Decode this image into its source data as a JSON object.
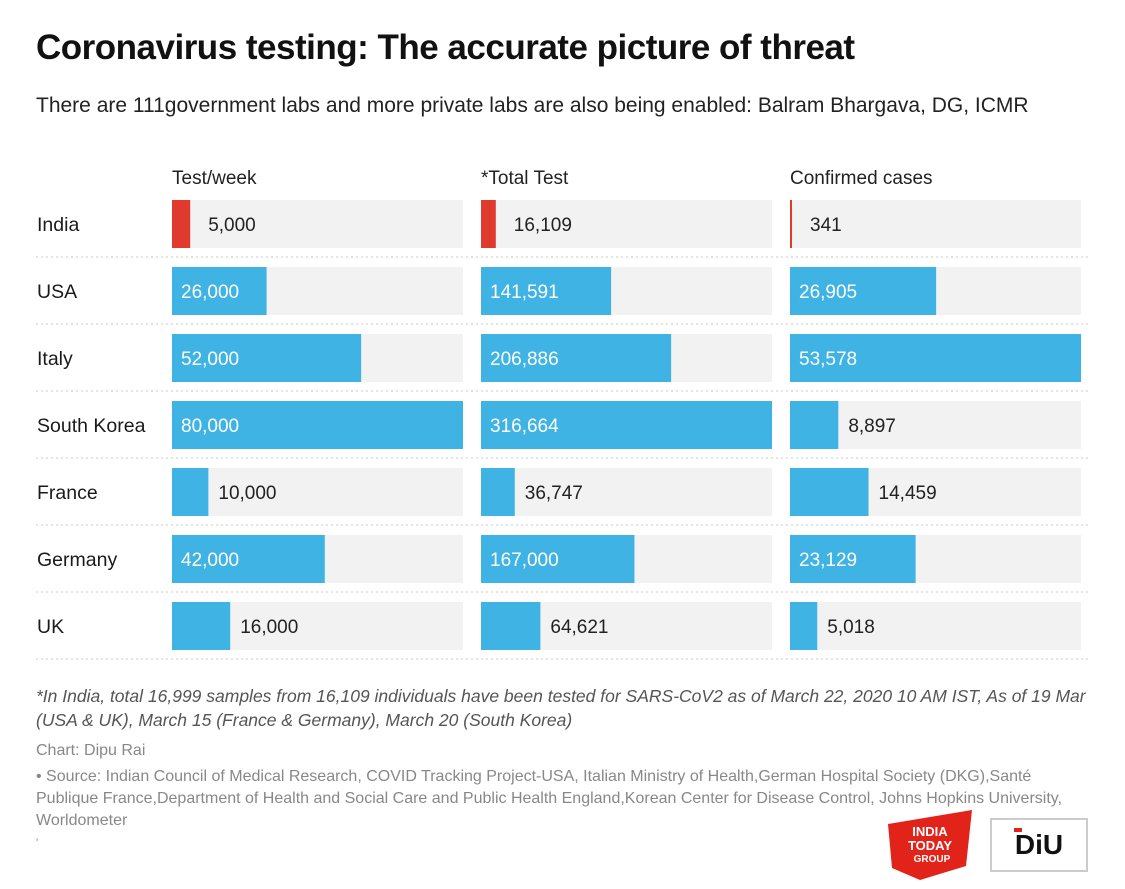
{
  "title": "Coronavirus testing: The accurate picture of threat",
  "subtitle": "There are 111government labs and more private labs are also being enabled: Balram Bhargava, DG, ICMR",
  "chart_data": {
    "type": "bar",
    "orientation": "horizontal",
    "categories": [
      "India",
      "USA",
      "Italy",
      "South Korea",
      "France",
      "Germany",
      "UK"
    ],
    "series": [
      {
        "name": "Test/week",
        "values": [
          5000,
          26000,
          52000,
          80000,
          10000,
          42000,
          16000
        ],
        "labels": [
          "5,000",
          "26,000",
          "52,000",
          "80,000",
          "10,000",
          "42,000",
          "16,000"
        ]
      },
      {
        "name": "*Total Test",
        "values": [
          16109,
          141591,
          206886,
          316664,
          36747,
          167000,
          64621
        ],
        "labels": [
          "16,109",
          "141,591",
          "206,886",
          "316,664",
          "36,747",
          "167,000",
          "64,621"
        ]
      },
      {
        "name": "Confirmed cases",
        "values": [
          341,
          26905,
          53578,
          8897,
          14459,
          23129,
          5018
        ],
        "labels": [
          "341",
          "26,905",
          "53,578",
          "8,897",
          "14,459",
          "23,129",
          "5,018"
        ]
      }
    ],
    "highlight_category": "India",
    "colors": {
      "highlight": "#e03a2f",
      "bar": "#3fb3e4",
      "track": "#f2f2f2"
    }
  },
  "footnote": "*In India, total 16,999 samples from 16,109 individuals have been tested for SARS-CoV2 as of March 22, 2020 10 AM IST, As of 19 Mar (USA & UK), March 15 (France & Germany), March 20 (South Korea)",
  "credit": "Chart: Dipu Rai",
  "source": "• Source: Indian Council of Medical Research, COVID Tracking Project-USA, Italian Ministry of Health,German Hospital Society (DKG),Santé Publique France,Department of Health and Social Care and Public Health England,Korean Center for Disease Control, Johns Hopkins University, Worldometer",
  "mark": "'",
  "logos": {
    "india_today": [
      "INDIA",
      "TODAY",
      "GROUP"
    ],
    "diu": "DiU"
  }
}
